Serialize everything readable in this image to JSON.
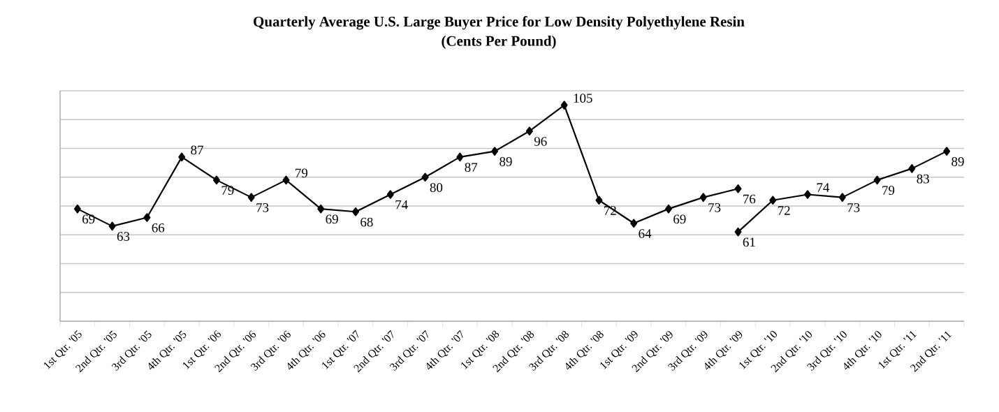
{
  "chart_data": {
    "type": "line",
    "title": "Quarterly Average U.S. Large Buyer Price for Low Density Polyethylene Resin",
    "subtitle": "(Cents Per Pound)",
    "categories": [
      "1st Qtr. '05",
      "2nd Qtr. '05",
      "3rd Qtr. '05",
      "4th Qtr. '05",
      "1st Qtr. '06",
      "2nd Qtr. '06",
      "3rd Qtr. '06",
      "4th Qtr. '06",
      "1st Qtr. '07",
      "2nd Qtr. '07",
      "3rd Qtr. '07",
      "4th Qtr. '07",
      "1st Qtr. '08",
      "2nd Qtr. '08",
      "3rd Qtr. '08",
      "4th Qtr. '08",
      "1st Qtr. '09",
      "2nd Qtr. '09",
      "3rd Qtr. '09",
      "4th Qtr. '09",
      "1st Qtr. '10",
      "2nd Qtr. '10",
      "3rd Qtr. '10",
      "4th Qtr. '10",
      "1st Qtr. '11",
      "2nd Qtr. '11"
    ],
    "series": [
      {
        "color": "#000000",
        "values": [
          69,
          63,
          66,
          87,
          79,
          73,
          79,
          69,
          68,
          74,
          80,
          87,
          89,
          96,
          105,
          72,
          64,
          69,
          73,
          76,
          null,
          null,
          null,
          null,
          null,
          null
        ]
      },
      {
        "color": "#000000",
        "values": [
          null,
          null,
          null,
          null,
          null,
          null,
          null,
          null,
          null,
          null,
          null,
          null,
          null,
          null,
          null,
          null,
          null,
          null,
          null,
          61,
          72,
          74,
          73,
          79,
          83,
          89
        ]
      }
    ],
    "ylim": [
      30,
      110
    ],
    "yticks": [
      {
        "value": 30,
        "label": null
      },
      {
        "value": 40,
        "label": null
      },
      {
        "value": 50,
        "label": null
      },
      {
        "value": 60,
        "label": null
      },
      {
        "value": 70,
        "label": null
      },
      {
        "value": 80,
        "label": null
      },
      {
        "value": 90,
        "label": null
      },
      {
        "value": 100,
        "label": null
      },
      {
        "value": 110,
        "label": null
      }
    ],
    "tick_labels": "x",
    "grid": "y",
    "marker": "diamond",
    "line_style": "solid",
    "data_labels": true
  }
}
